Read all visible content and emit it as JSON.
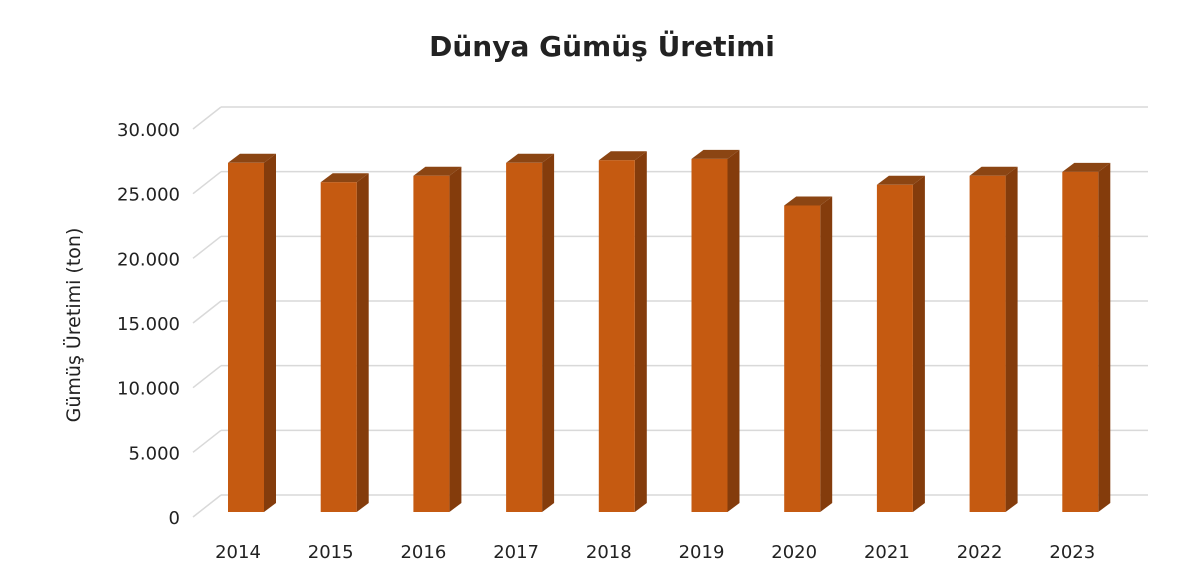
{
  "chart_data": {
    "type": "bar",
    "style": "3d-column",
    "title": "Dünya Gümüş Üretimi",
    "xlabel": "",
    "ylabel": "Gümüş Üretimi (ton)",
    "categories": [
      "2014",
      "2015",
      "2016",
      "2017",
      "2018",
      "2019",
      "2020",
      "2021",
      "2022",
      "2023"
    ],
    "values": [
      27000,
      25500,
      26000,
      27000,
      27200,
      27300,
      23700,
      25300,
      26000,
      26300
    ],
    "ylim": [
      0,
      30000
    ],
    "yticks": [
      0,
      5000,
      10000,
      15000,
      20000,
      25000,
      30000
    ],
    "ytick_labels": [
      "0",
      "5.000",
      "10.000",
      "15.000",
      "20.000",
      "25.000",
      "30.000"
    ],
    "grid": true,
    "legend": "none",
    "colors": {
      "front": "#C55A11",
      "side": "#843C0C",
      "top": "#8B4513",
      "grid": "#D9D9D9"
    }
  }
}
